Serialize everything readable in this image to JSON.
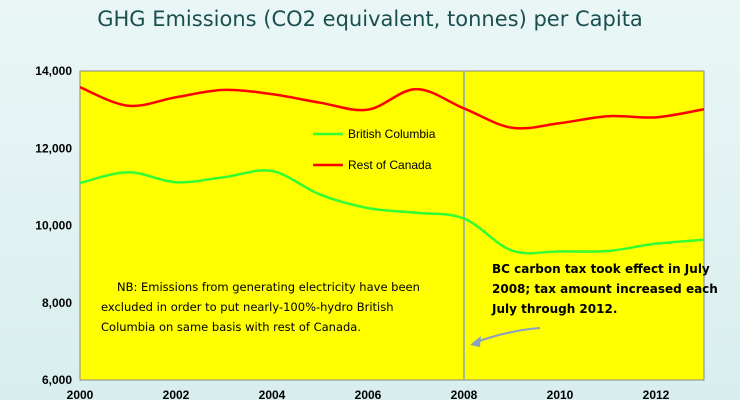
{
  "chart_data": {
    "type": "line",
    "title": "GHG Emissions (CO2 equivalent, tonnes) per Capita",
    "xlabel": "",
    "ylabel": "",
    "xlim": [
      2000,
      2013
    ],
    "ylim": [
      6000,
      14000
    ],
    "y_ticks": [
      "6,000",
      "8,000",
      "10,000",
      "12,000",
      "14,000"
    ],
    "x_ticks": [
      "2000",
      "2002",
      "2004",
      "2006",
      "2008",
      "2010",
      "2012"
    ],
    "x_tick_values": [
      2000,
      2002,
      2004,
      2006,
      2008,
      2010,
      2012
    ],
    "y_tick_values": [
      6000,
      8000,
      10000,
      12000,
      14000
    ],
    "grid": false,
    "plot_background": "#ffff00",
    "legend_position": "upper-center",
    "series": [
      {
        "name": "British Columbia",
        "color": "#33ff33",
        "x": [
          2000,
          2001,
          2002,
          2003,
          2004,
          2005,
          2006,
          2007,
          2008,
          2009,
          2010,
          2011,
          2012,
          2013
        ],
        "values": [
          11100,
          11380,
          11120,
          11250,
          11410,
          10800,
          10450,
          10330,
          10180,
          9350,
          9330,
          9340,
          9530,
          9630
        ]
      },
      {
        "name": "Rest of Canada",
        "color": "#ff0000",
        "x": [
          2000,
          2001,
          2002,
          2003,
          2004,
          2005,
          2006,
          2007,
          2008,
          2009,
          2010,
          2011,
          2012,
          2013
        ],
        "values": [
          13580,
          13100,
          13320,
          13510,
          13400,
          13180,
          13000,
          13530,
          13030,
          12530,
          12650,
          12830,
          12800,
          13010
        ]
      }
    ],
    "marker": {
      "x": 2008,
      "color": "#8a9fc4"
    },
    "annotations": {
      "note_lines": [
        "NB: Emissions from generating electricity have been",
        "excluded in order to put nearly-100%-hydro British",
        "Columbia on same basis with rest of Canada."
      ],
      "callout_lines": [
        "BC carbon tax took effect in July",
        "2008; tax amount increased each",
        "July through 2012."
      ]
    }
  }
}
